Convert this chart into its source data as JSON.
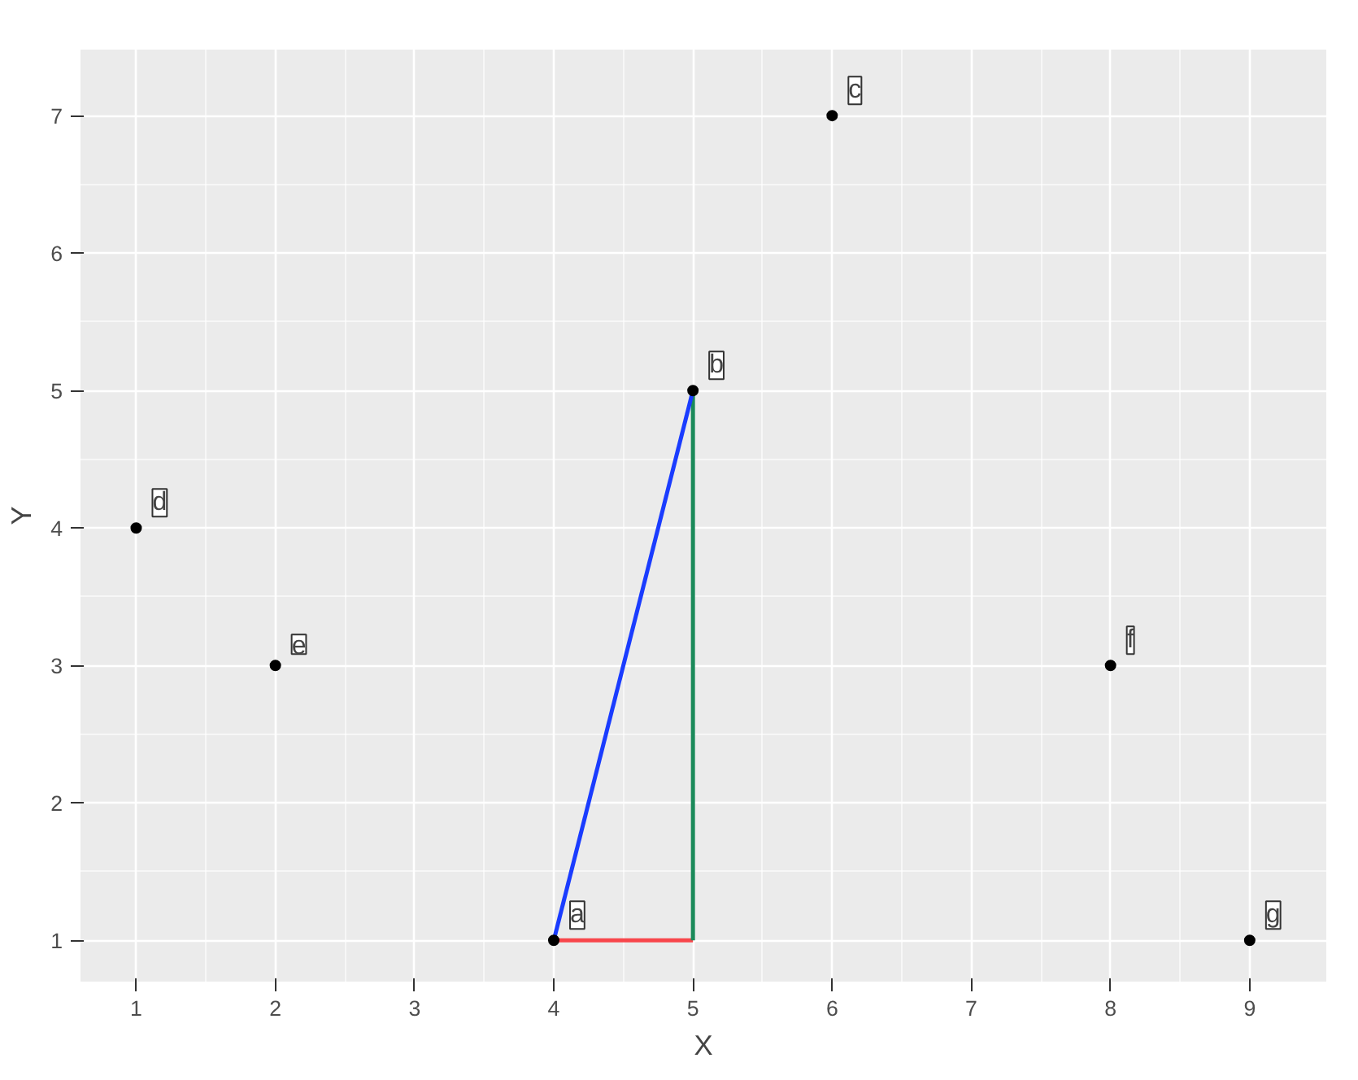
{
  "chart_data": {
    "type": "scatter",
    "xlabel": "X",
    "ylabel": "Y",
    "xlim": [
      0.6,
      9.55
    ],
    "ylim": [
      0.7,
      7.48
    ],
    "xticks": [
      1,
      2,
      3,
      4,
      5,
      6,
      7,
      8,
      9
    ],
    "yticks": [
      1,
      2,
      3,
      4,
      5,
      6,
      7
    ],
    "grid": true,
    "series": [
      {
        "type": "line",
        "color": "#f8464b",
        "x": [
          4,
          5
        ],
        "values": [
          1,
          1
        ]
      },
      {
        "type": "line",
        "color": "#1b8a5a",
        "x": [
          5,
          5
        ],
        "values": [
          1,
          5
        ]
      },
      {
        "type": "line",
        "color": "#1a3cff",
        "x": [
          4,
          5
        ],
        "values": [
          1,
          5
        ]
      },
      {
        "color": "#000000",
        "marker": "circle",
        "x": [
          4,
          5,
          6,
          1,
          2,
          8,
          9
        ],
        "values": [
          1,
          5,
          7,
          4,
          3,
          3,
          1
        ],
        "value_labels": [
          "a",
          "b",
          "c",
          "d",
          "e",
          "f",
          "g"
        ]
      }
    ]
  }
}
